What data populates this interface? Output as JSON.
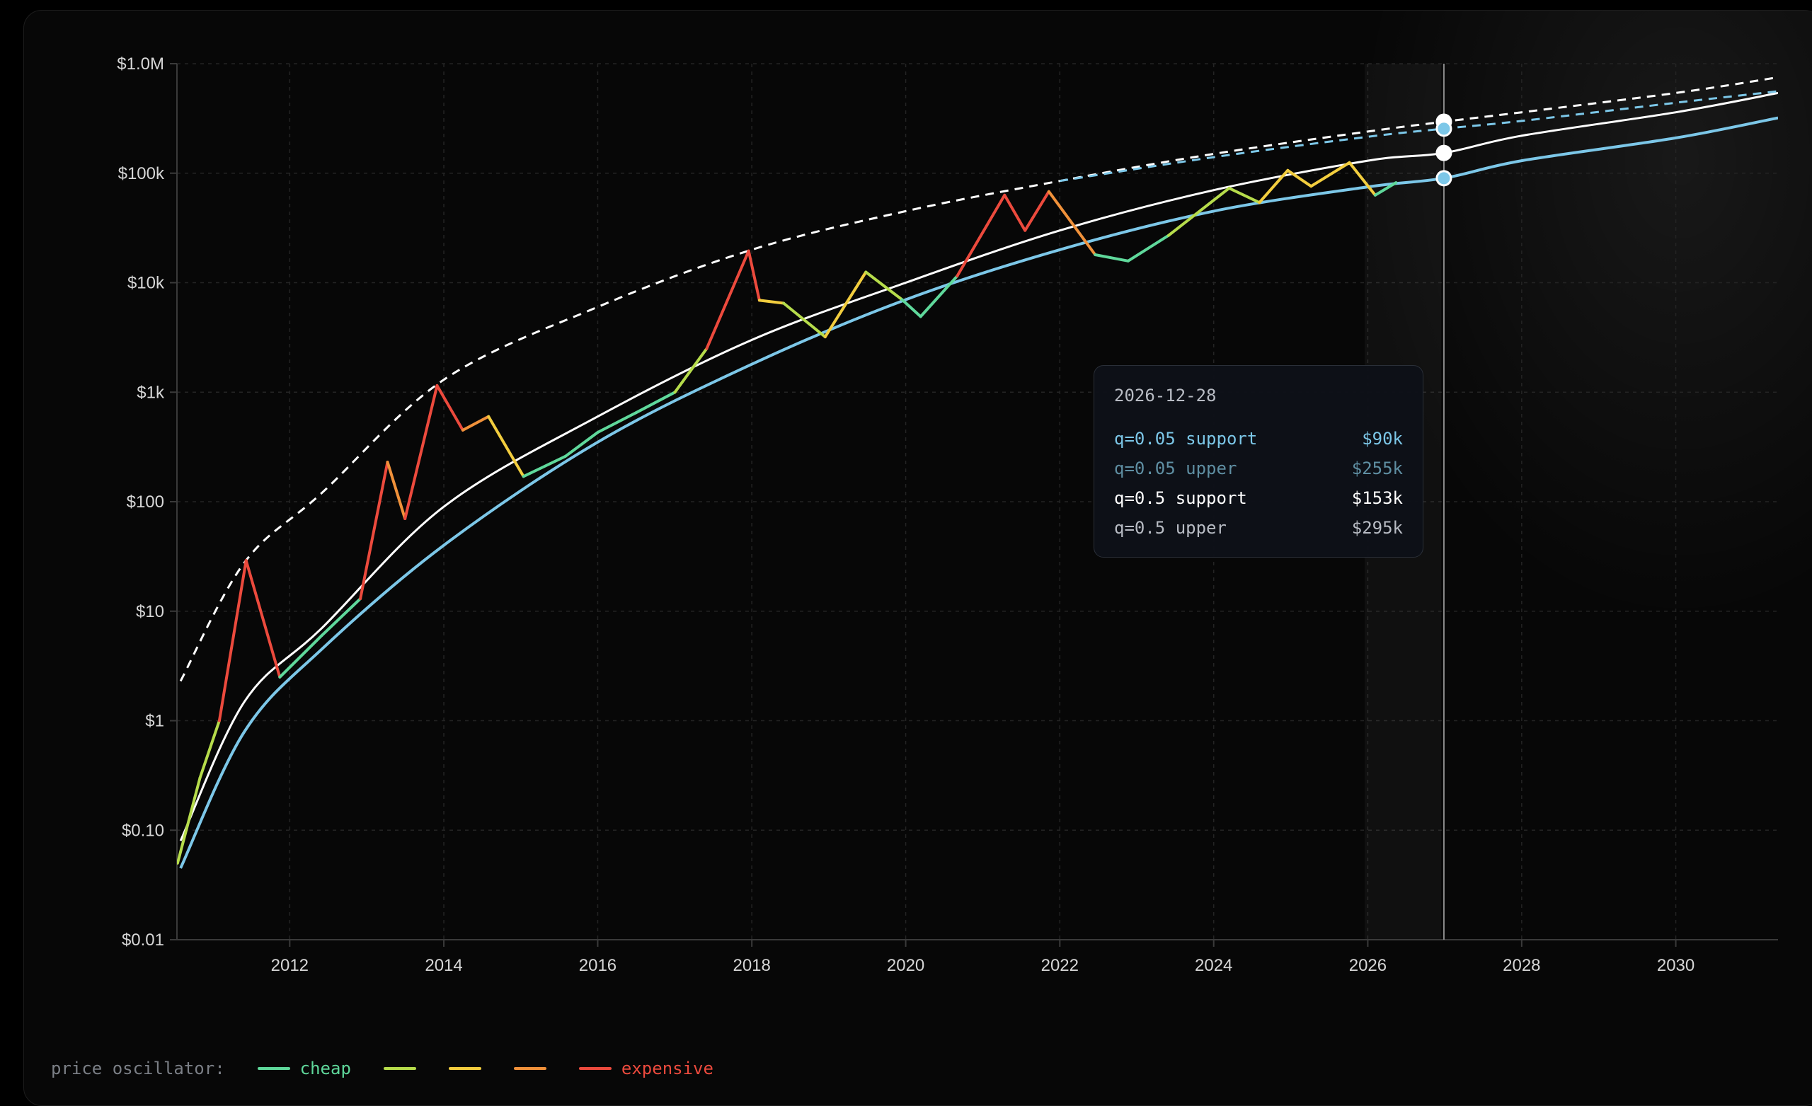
{
  "chart_data": {
    "type": "line",
    "y_scale": "log",
    "ylim": [
      0.01,
      1000000
    ],
    "xlim": [
      "2010-07-15",
      "2031-05-01"
    ],
    "y_ticks": [
      {
        "value": 1000000,
        "label": "$1.0M"
      },
      {
        "value": 100000,
        "label": "$100k"
      },
      {
        "value": 10000,
        "label": "$10k"
      },
      {
        "value": 1000,
        "label": "$1k"
      },
      {
        "value": 100,
        "label": "$100"
      },
      {
        "value": 10,
        "label": "$10"
      },
      {
        "value": 1,
        "label": "$1"
      },
      {
        "value": 0.1,
        "label": "$0.10"
      },
      {
        "value": 0.01,
        "label": "$0.01"
      }
    ],
    "x_ticks": [
      "2012",
      "2014",
      "2016",
      "2018",
      "2020",
      "2022",
      "2024",
      "2026",
      "2028",
      "2030"
    ],
    "grid": true,
    "series": [
      {
        "name": "q=0.05 support",
        "style": "solid",
        "color": "#7cc7e8",
        "points": [
          [
            "2010-08-01",
            0.045
          ],
          [
            "2011-06-01",
            0.8
          ],
          [
            "2012-06-01",
            4.5
          ],
          [
            "2014-01-01",
            40
          ],
          [
            "2016-01-01",
            350
          ],
          [
            "2018-01-01",
            1800
          ],
          [
            "2020-01-01",
            7000
          ],
          [
            "2022-01-01",
            20000
          ],
          [
            "2024-01-01",
            45000
          ],
          [
            "2026-01-01",
            75000
          ],
          [
            "2026-12-28",
            90000
          ],
          [
            "2028-01-01",
            130000
          ],
          [
            "2030-01-01",
            210000
          ],
          [
            "2031-05-01",
            320000
          ]
        ]
      },
      {
        "name": "q=0.5 support",
        "style": "solid",
        "color": "#ffffff",
        "points": [
          [
            "2010-08-01",
            0.08
          ],
          [
            "2011-06-01",
            1.5
          ],
          [
            "2012-06-01",
            7
          ],
          [
            "2014-01-01",
            90
          ],
          [
            "2016-01-01",
            600
          ],
          [
            "2018-01-01",
            3000
          ],
          [
            "2020-01-01",
            10000
          ],
          [
            "2022-01-01",
            30000
          ],
          [
            "2024-01-01",
            70000
          ],
          [
            "2026-01-01",
            130000
          ],
          [
            "2026-12-28",
            153000
          ],
          [
            "2028-01-01",
            220000
          ],
          [
            "2030-01-01",
            360000
          ],
          [
            "2031-05-01",
            540000
          ]
        ]
      },
      {
        "name": "q=0.5 upper",
        "style": "dashed",
        "color": "#ffffff",
        "points": [
          [
            "2010-08-01",
            2.3
          ],
          [
            "2011-06-01",
            28
          ],
          [
            "2012-06-01",
            120
          ],
          [
            "2014-01-01",
            1300
          ],
          [
            "2016-01-01",
            6000
          ],
          [
            "2018-01-01",
            20000
          ],
          [
            "2020-01-01",
            45000
          ],
          [
            "2022-01-01",
            85000
          ],
          [
            "2024-01-01",
            150000
          ],
          [
            "2026-01-01",
            240000
          ],
          [
            "2026-12-28",
            295000
          ],
          [
            "2028-01-01",
            360000
          ],
          [
            "2030-01-01",
            540000
          ],
          [
            "2031-05-01",
            750000
          ]
        ]
      },
      {
        "name": "q=0.05 upper",
        "style": "dashed",
        "color": "#7cc7e8",
        "points": [
          [
            "2022-01-01",
            85000
          ],
          [
            "2024-01-01",
            140000
          ],
          [
            "2026-01-01",
            215000
          ],
          [
            "2026-12-28",
            255000
          ],
          [
            "2028-01-01",
            300000
          ],
          [
            "2030-01-01",
            440000
          ],
          [
            "2031-05-01",
            560000
          ]
        ]
      },
      {
        "name": "price",
        "style": "oscillator",
        "points": [
          [
            "2010-07-18",
            0.05
          ],
          [
            "2010-11-01",
            0.3
          ],
          [
            "2011-02-01",
            1.0
          ],
          [
            "2011-06-08",
            29
          ],
          [
            "2011-11-15",
            2.5
          ],
          [
            "2012-06-01",
            6
          ],
          [
            "2012-12-01",
            13
          ],
          [
            "2013-04-09",
            230
          ],
          [
            "2013-07-01",
            70
          ],
          [
            "2013-11-30",
            1150
          ],
          [
            "2014-04-01",
            450
          ],
          [
            "2014-08-01",
            600
          ],
          [
            "2015-01-14",
            170
          ],
          [
            "2015-08-01",
            260
          ],
          [
            "2016-01-01",
            430
          ],
          [
            "2016-07-01",
            650
          ],
          [
            "2017-01-01",
            1000
          ],
          [
            "2017-06-01",
            2500
          ],
          [
            "2017-12-17",
            19500
          ],
          [
            "2018-02-06",
            6900
          ],
          [
            "2018-06-01",
            6500
          ],
          [
            "2018-12-15",
            3200
          ],
          [
            "2019-06-26",
            12500
          ],
          [
            "2019-12-15",
            7000
          ],
          [
            "2020-03-12",
            4900
          ],
          [
            "2020-09-01",
            11500
          ],
          [
            "2021-04-14",
            63000
          ],
          [
            "2021-07-20",
            30000
          ],
          [
            "2021-11-10",
            68000
          ],
          [
            "2022-06-18",
            18000
          ],
          [
            "2022-11-21",
            15800
          ],
          [
            "2023-06-01",
            27000
          ],
          [
            "2024-03-14",
            73000
          ],
          [
            "2024-08-05",
            54000
          ],
          [
            "2024-12-17",
            106000
          ],
          [
            "2025-04-07",
            76000
          ],
          [
            "2025-10-06",
            125000
          ],
          [
            "2026-02-05",
            63000
          ],
          [
            "2026-05-15",
            82000
          ]
        ]
      }
    ],
    "cursor": {
      "date": "2026-12-28",
      "rows": [
        {
          "label": "q=0.05 support",
          "value": "$90k",
          "color": "#7cc7e8"
        },
        {
          "label": "q=0.05 upper",
          "value": "$255k",
          "color": "#5f8fa3"
        },
        {
          "label": "q=0.5 support",
          "value": "$153k",
          "color": "#ffffff"
        },
        {
          "label": "q=0.5 upper",
          "value": "$295k",
          "color": "#b8bcc4"
        }
      ]
    },
    "legend": {
      "title": "price oscillator:",
      "items": [
        {
          "label": "cheap",
          "color": "#5fd89b"
        },
        {
          "label": "",
          "color": "#b6dc4b"
        },
        {
          "label": "",
          "color": "#f2cd3e"
        },
        {
          "label": "",
          "color": "#f0913a"
        },
        {
          "label": "expensive",
          "color": "#ec4a3d"
        }
      ],
      "placement": "bottom-left"
    }
  }
}
